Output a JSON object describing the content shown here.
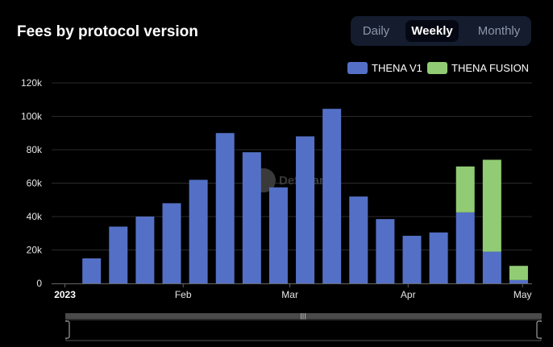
{
  "header": {
    "title": "Fees by protocol version"
  },
  "toggle": {
    "options": [
      "Daily",
      "Weekly",
      "Monthly"
    ],
    "selected": "Weekly"
  },
  "watermark": "DefiLlama",
  "colors": {
    "v1": "#5470c6",
    "fusion": "#91cc75",
    "background": "#000000",
    "grid": "#2a2a2a"
  },
  "chart_data": {
    "type": "bar",
    "stacked": true,
    "title": "Fees by protocol version",
    "x_tick_labels": [
      "2023",
      "Feb",
      "Mar",
      "Apr",
      "May"
    ],
    "y_tick_labels": [
      "0",
      "20k",
      "40k",
      "60k",
      "80k",
      "100k",
      "120k"
    ],
    "ylim": [
      0,
      120000
    ],
    "grid": true,
    "legend_position": "top-right",
    "categories": [
      "2023-01-01",
      "2023-01-08",
      "2023-01-15",
      "2023-01-22",
      "2023-01-29",
      "2023-02-05",
      "2023-02-12",
      "2023-02-19",
      "2023-02-26",
      "2023-03-05",
      "2023-03-12",
      "2023-03-19",
      "2023-03-26",
      "2023-04-02",
      "2023-04-09",
      "2023-04-16",
      "2023-04-23",
      "2023-04-30"
    ],
    "series": [
      {
        "name": "THENA V1",
        "values": [
          0,
          15000,
          34000,
          40000,
          48000,
          62000,
          90000,
          78500,
          57500,
          88000,
          104500,
          52000,
          38500,
          28500,
          30500,
          42500,
          19000,
          2000
        ]
      },
      {
        "name": "THENA FUSION",
        "values": [
          0,
          0,
          0,
          0,
          0,
          0,
          0,
          0,
          0,
          0,
          0,
          0,
          0,
          0,
          0,
          27500,
          55000,
          8500
        ]
      }
    ]
  }
}
